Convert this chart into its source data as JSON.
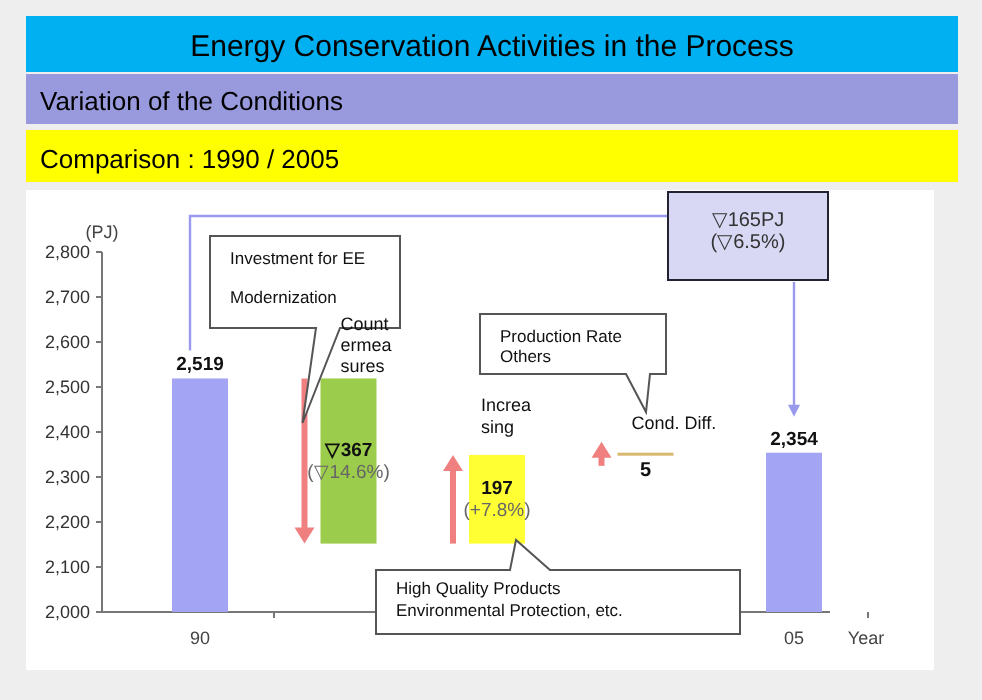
{
  "chart_data": {
    "type": "bar",
    "title": "Energy Conservation Activities in the Process",
    "subtitle": "Variation of the Conditions",
    "ylabel": "(PJ)",
    "xlabel": "Year",
    "categories": [
      "90",
      null,
      null,
      null,
      "05"
    ],
    "values": [
      2519,
      367,
      197,
      5,
      2354
    ],
    "base": [
      null,
      2152,
      2152,
      2349,
      null
    ],
    "colors": [
      "#a4a4f4",
      "#9ccc4c",
      "#ffff33",
      "#d8b870",
      "#a4a4f4"
    ],
    "value_labels": [
      "2,519",
      "▽367\n(▽14.6%)",
      "197\n(+7.8%)",
      "5",
      "2,354"
    ],
    "ylim": [
      2000,
      2800
    ],
    "yticks": [
      {
        "value": 2000,
        "label": "2,000"
      },
      {
        "value": 2100,
        "label": "2,100"
      },
      {
        "value": 2200,
        "label": "2,200"
      },
      {
        "value": 2300,
        "label": "2,300"
      },
      {
        "value": 2400,
        "label": "2,400"
      },
      {
        "value": 2500,
        "label": "2,500"
      },
      {
        "value": 2600,
        "label": "2,600"
      },
      {
        "value": 2700,
        "label": "2,700"
      },
      {
        "value": 2800,
        "label": "2,800"
      }
    ],
    "annotations": [
      "Comparison : 1990 / 2005",
      "Investment for EE\nModernization",
      "Count\nermea\nsures",
      "Increa\nsing",
      "Cond. Diff.",
      "Production Rate\nOthers",
      "High Quality Products\nEnvironmental Protection, etc.",
      "▽165PJ\n(▽6.5%)"
    ]
  }
}
